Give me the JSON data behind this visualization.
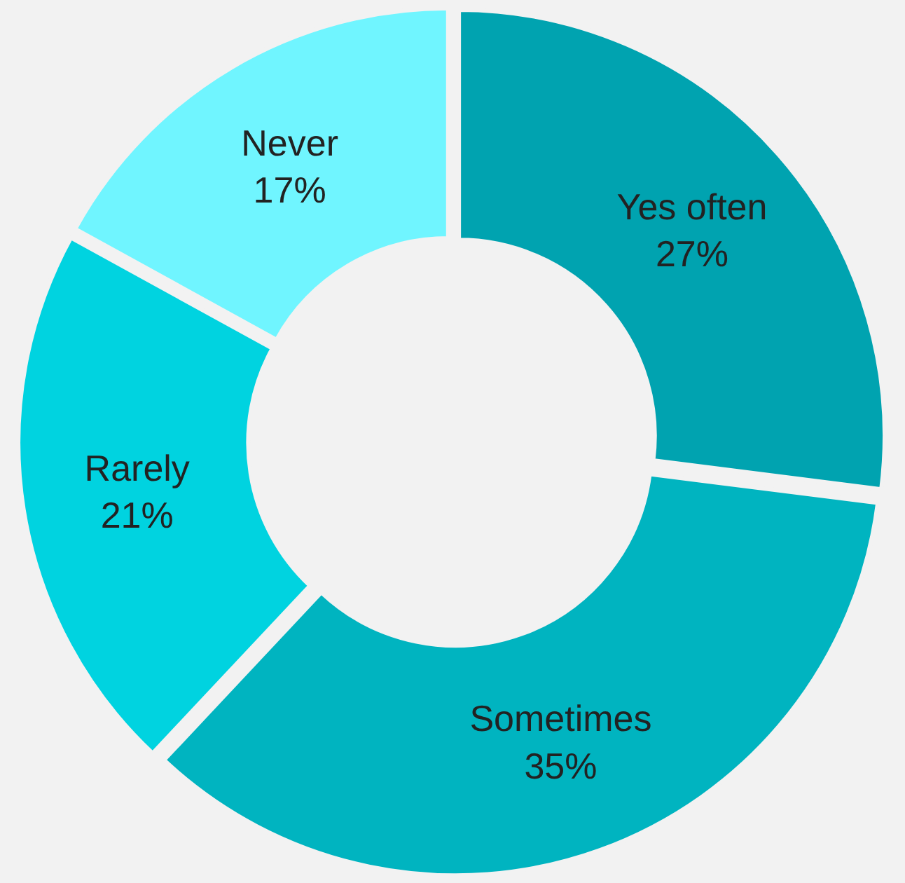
{
  "chart_data": {
    "type": "donut",
    "categories": [
      "Yes often",
      "Sometimes",
      "Rarely",
      "Never"
    ],
    "values": [
      27,
      35,
      21,
      17
    ],
    "value_labels": [
      "27%",
      "35%",
      "21%",
      "17%"
    ],
    "colors": [
      "#00a3b0",
      "#00b4c0",
      "#00d3e0",
      "#70f5ff"
    ],
    "legend": false
  }
}
